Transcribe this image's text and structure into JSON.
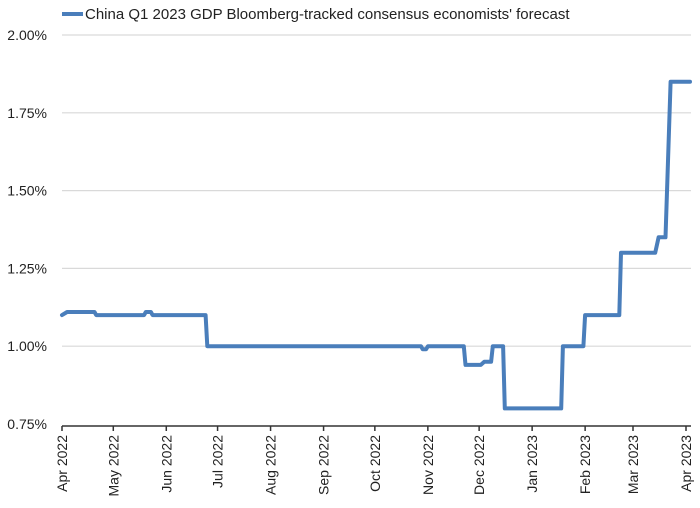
{
  "chart_data": {
    "type": "line",
    "title": "",
    "xlabel": "",
    "ylabel": "",
    "legend": {
      "position": "top",
      "entries": [
        "China Q1 2023 GDP Bloomberg-tracked consensus economists' forecast"
      ]
    },
    "series_color": "#4a7ebb",
    "grid": true,
    "ylim": [
      0.75,
      2.0
    ],
    "y_ticks": [
      0.75,
      1.0,
      1.25,
      1.5,
      1.75,
      2.0
    ],
    "y_tick_labels": [
      "0.75%",
      "1.00%",
      "1.25%",
      "1.50%",
      "1.75%",
      "2.00%"
    ],
    "x_range": [
      "2022-04-01",
      "2023-04-03"
    ],
    "x_ticks": [
      "2022-04-01",
      "2022-05-01",
      "2022-06-01",
      "2022-07-01",
      "2022-08-01",
      "2022-09-01",
      "2022-10-01",
      "2022-11-01",
      "2022-12-01",
      "2023-01-01",
      "2023-02-01",
      "2023-03-01",
      "2023-04-01"
    ],
    "x_tick_labels": [
      "Apr 2022",
      "May 2022",
      "Jun 2022",
      "Jul 2022",
      "Aug 2022",
      "Sep 2022",
      "Oct 2022",
      "Nov 2022",
      "Dec 2022",
      "Jan 2023",
      "Feb 2023",
      "Mar 2023",
      "Apr 2023"
    ],
    "series": [
      {
        "name": "China Q1 2023 GDP Bloomberg-tracked consensus economists' forecast",
        "points": [
          [
            "2022-04-01",
            1.1
          ],
          [
            "2022-04-04",
            1.11
          ],
          [
            "2022-04-20",
            1.11
          ],
          [
            "2022-04-21",
            1.1
          ],
          [
            "2022-05-19",
            1.1
          ],
          [
            "2022-05-20",
            1.11
          ],
          [
            "2022-05-23",
            1.11
          ],
          [
            "2022-05-24",
            1.1
          ],
          [
            "2022-06-24",
            1.1
          ],
          [
            "2022-06-25",
            1.0
          ],
          [
            "2022-10-28",
            1.0
          ],
          [
            "2022-10-29",
            0.99
          ],
          [
            "2022-10-31",
            0.99
          ],
          [
            "2022-11-01",
            1.0
          ],
          [
            "2022-11-22",
            1.0
          ],
          [
            "2022-11-23",
            0.94
          ],
          [
            "2022-12-02",
            0.94
          ],
          [
            "2022-12-04",
            0.95
          ],
          [
            "2022-12-08",
            0.95
          ],
          [
            "2022-12-09",
            1.0
          ],
          [
            "2022-12-15",
            1.0
          ],
          [
            "2022-12-16",
            0.8
          ],
          [
            "2023-01-18",
            0.8
          ],
          [
            "2023-01-19",
            1.0
          ],
          [
            "2023-01-31",
            1.0
          ],
          [
            "2023-02-01",
            1.1
          ],
          [
            "2023-02-21",
            1.1
          ],
          [
            "2023-02-22",
            1.3
          ],
          [
            "2023-03-14",
            1.3
          ],
          [
            "2023-03-16",
            1.35
          ],
          [
            "2023-03-20",
            1.35
          ],
          [
            "2023-03-23",
            1.85
          ],
          [
            "2023-04-01",
            1.85
          ]
        ]
      }
    ]
  }
}
